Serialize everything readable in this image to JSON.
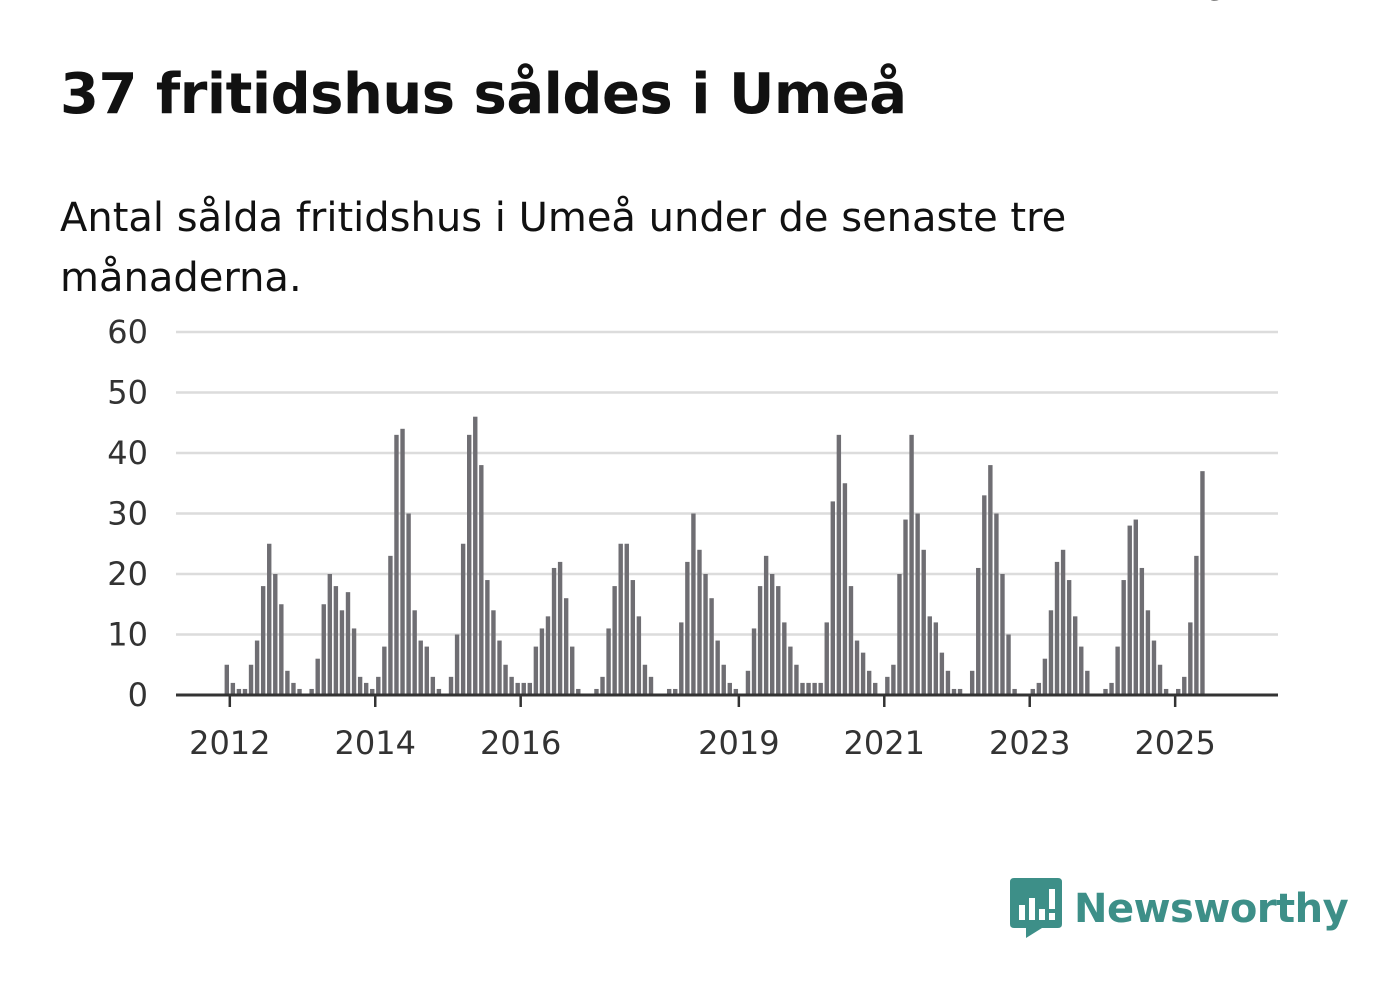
{
  "header": {
    "title": "37 fritidshus såldes i Umeå",
    "subtitle": "Antal sålda fritidshus i Umeå under de senaste tre månaderna."
  },
  "brand": {
    "name": "Newsworthy",
    "icon": "newsworthy-logo-icon",
    "color": "#3d8f88"
  },
  "colors": {
    "bar": "#6f6e73",
    "highlight": "#119e9e",
    "grid": "#dcdcdc",
    "axis": "#333333"
  },
  "chart_data": {
    "type": "bar",
    "x_start": "2012-01",
    "x_unit": "month",
    "ylim": [
      0,
      60
    ],
    "yticks": [
      0,
      10,
      20,
      30,
      40,
      50,
      60
    ],
    "xticks": [
      "2012",
      "2014",
      "2016",
      "2019",
      "2021",
      "2023",
      "2025"
    ],
    "grid": true,
    "values": [
      5,
      2,
      1,
      1,
      5,
      9,
      18,
      25,
      20,
      15,
      4,
      2,
      1,
      0,
      1,
      6,
      15,
      20,
      18,
      14,
      17,
      11,
      3,
      2,
      1,
      3,
      8,
      23,
      43,
      44,
      30,
      14,
      9,
      8,
      3,
      1,
      0,
      3,
      10,
      25,
      43,
      46,
      38,
      19,
      14,
      9,
      5,
      3,
      2,
      2,
      2,
      8,
      11,
      13,
      21,
      22,
      16,
      8,
      1,
      0,
      0,
      1,
      3,
      11,
      18,
      25,
      25,
      19,
      13,
      5,
      3,
      0,
      0,
      1,
      1,
      12,
      22,
      30,
      24,
      20,
      16,
      9,
      5,
      2,
      1,
      0,
      4,
      11,
      18,
      23,
      20,
      18,
      12,
      8,
      5,
      2,
      2,
      2,
      2,
      12,
      32,
      43,
      35,
      18,
      9,
      7,
      4,
      2,
      0,
      3,
      5,
      20,
      29,
      43,
      30,
      24,
      13,
      12,
      7,
      4,
      1,
      1,
      0,
      4,
      21,
      33,
      38,
      30,
      20,
      10,
      1,
      0,
      0,
      1,
      2,
      6,
      14,
      22,
      24,
      19,
      13,
      8,
      4,
      0,
      0,
      1,
      2,
      8,
      19,
      28,
      29,
      21,
      14,
      9,
      5,
      1,
      0,
      1,
      3,
      12,
      23,
      37
    ],
    "highlight_index": 165,
    "highlight_label": "37"
  }
}
